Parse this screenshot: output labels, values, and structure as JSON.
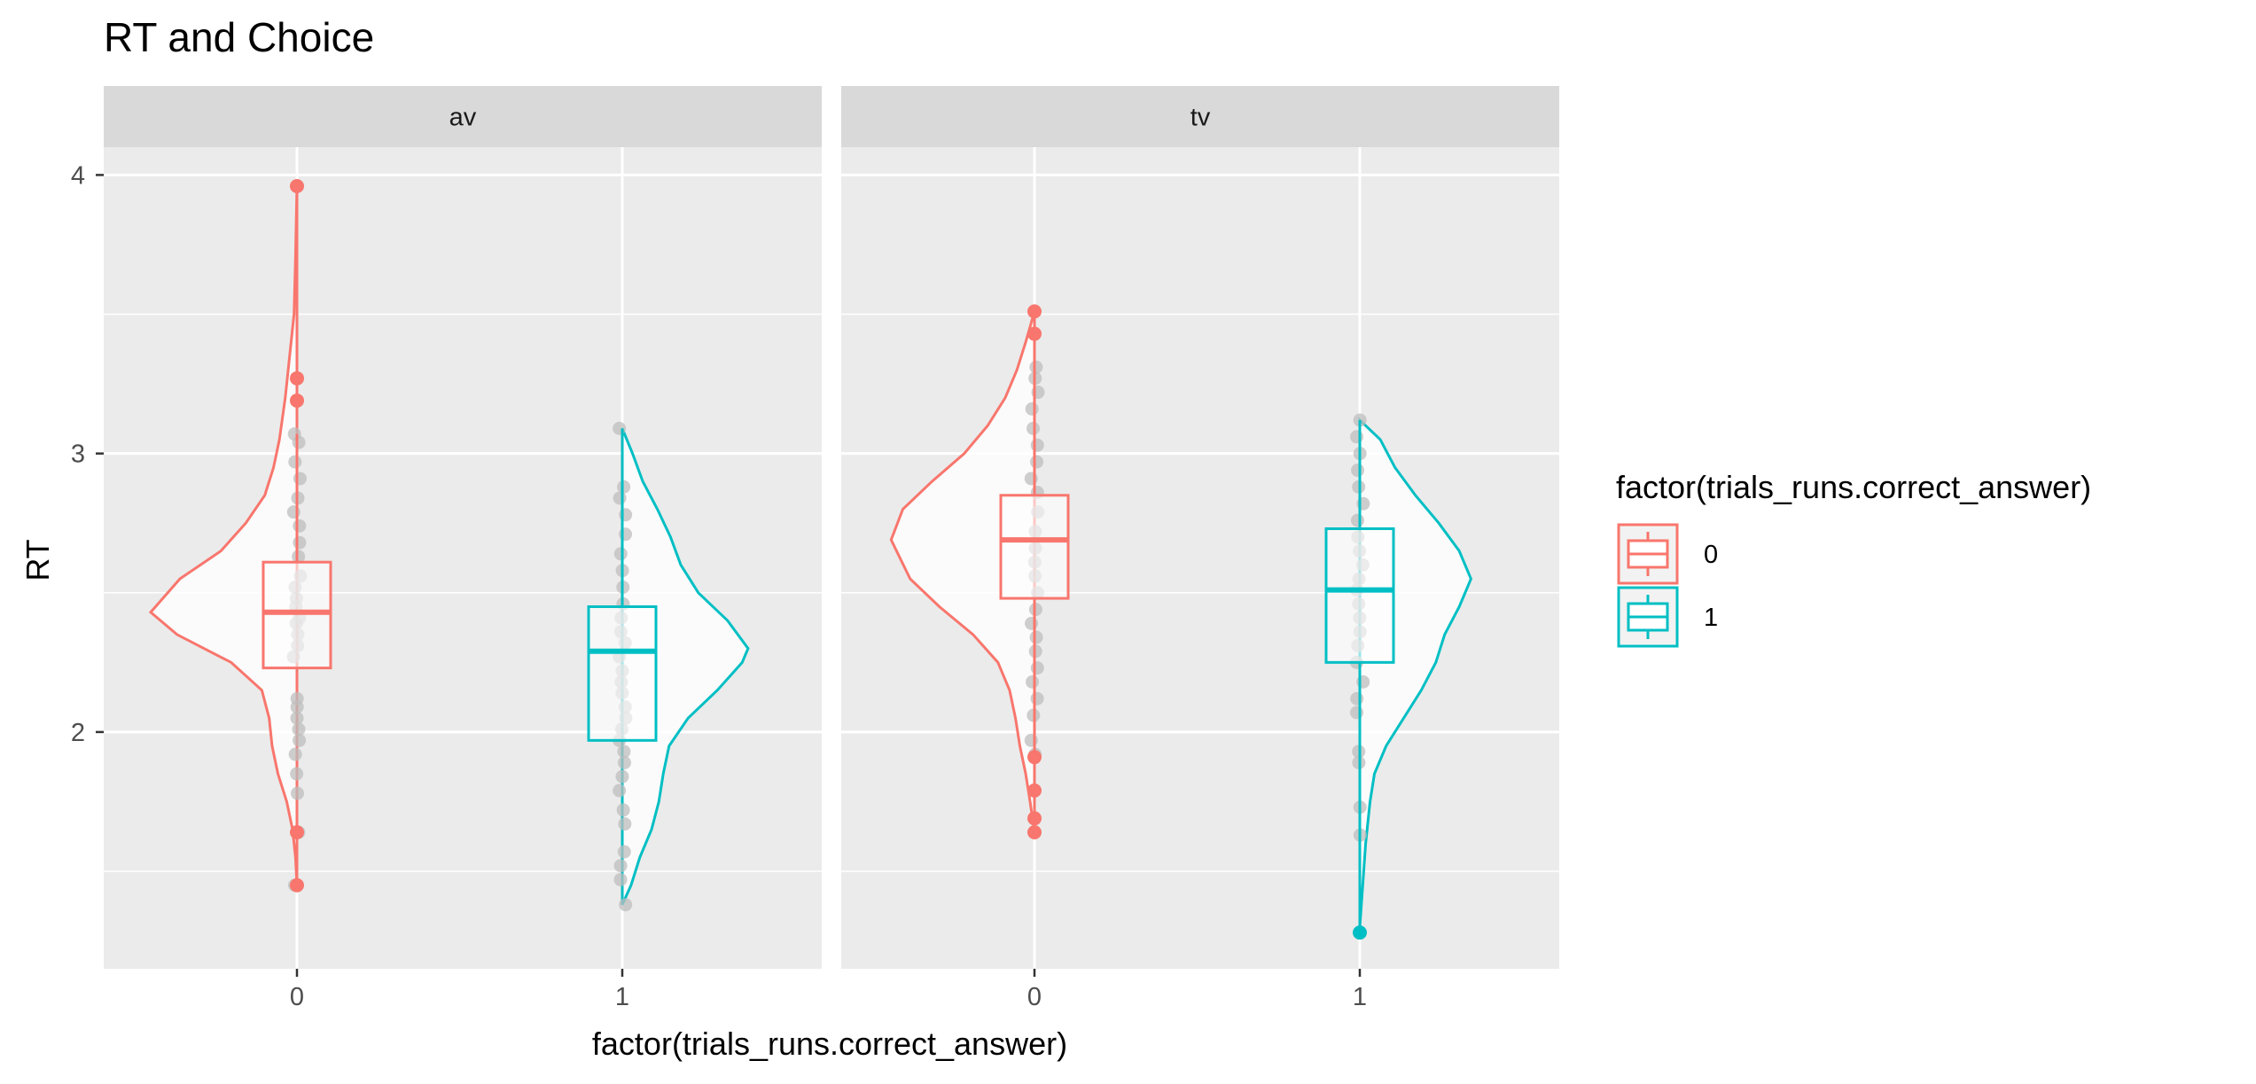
{
  "chart_data": {
    "type": "raincloud",
    "title": "RT and Choice",
    "xlabel": "factor(trials_runs.correct_answer)",
    "ylabel": "RT",
    "ylim": [
      1.15,
      4.1
    ],
    "y_ticks": [
      2,
      3,
      4
    ],
    "y_minor_ticks": [
      1.5,
      2.5,
      3.5
    ],
    "x_categories": [
      "0",
      "1"
    ],
    "grid": true,
    "legend": {
      "title": "factor(trials_runs.correct_answer)",
      "position": "right",
      "entries": [
        {
          "label": "0",
          "color": "#F8766D"
        },
        {
          "label": "1",
          "color": "#00BFC4"
        }
      ]
    },
    "colors": {
      "0": "#F8766D",
      "1": "#00BFC4",
      "panel_bg": "#EBEBEB",
      "strip_bg": "#D9D9D9",
      "points": "#BDBDBD"
    },
    "facets": [
      {
        "label": "av",
        "groups": [
          {
            "category": "0",
            "box": {
              "lower": 2.23,
              "q1": 2.23,
              "median": 2.43,
              "q3": 2.61,
              "upper": 3.07
            },
            "points": [
              1.45,
              1.64,
              1.78,
              1.85,
              1.92,
              1.97,
              2.01,
              2.05,
              2.09,
              2.12,
              2.27,
              2.31,
              2.35,
              2.39,
              2.41,
              2.45,
              2.48,
              2.52,
              2.56,
              2.63,
              2.68,
              2.74,
              2.79,
              2.84,
              2.91,
              2.97,
              3.04,
              3.07
            ],
            "outliers": [
              1.45,
              1.64,
              3.19,
              3.27,
              3.96
            ],
            "density": [
              [
                1.45,
                0.0
              ],
              [
                1.55,
                0.01
              ],
              [
                1.65,
                0.03
              ],
              [
                1.75,
                0.07
              ],
              [
                1.85,
                0.13
              ],
              [
                1.95,
                0.17
              ],
              [
                2.05,
                0.19
              ],
              [
                2.15,
                0.24
              ],
              [
                2.25,
                0.45
              ],
              [
                2.35,
                0.82
              ],
              [
                2.43,
                1.0
              ],
              [
                2.55,
                0.8
              ],
              [
                2.65,
                0.52
              ],
              [
                2.75,
                0.35
              ],
              [
                2.85,
                0.22
              ],
              [
                2.95,
                0.16
              ],
              [
                3.05,
                0.12
              ],
              [
                3.2,
                0.08
              ],
              [
                3.35,
                0.05
              ],
              [
                3.5,
                0.02
              ],
              [
                3.7,
                0.01
              ],
              [
                3.96,
                0.0
              ]
            ]
          },
          {
            "category": "1",
            "box": {
              "lower": 1.97,
              "q1": 1.97,
              "median": 2.29,
              "q3": 2.45,
              "upper": 3.09
            },
            "points": [
              1.38,
              1.47,
              1.52,
              1.57,
              1.67,
              1.72,
              1.79,
              1.84,
              1.89,
              1.93,
              1.97,
              2.01,
              2.05,
              2.09,
              2.14,
              2.18,
              2.22,
              2.27,
              2.32,
              2.36,
              2.41,
              2.46,
              2.52,
              2.58,
              2.64,
              2.71,
              2.78,
              2.84,
              2.88,
              3.09
            ],
            "outliers": [],
            "density": [
              [
                1.38,
                0.0
              ],
              [
                1.45,
                0.06
              ],
              [
                1.55,
                0.12
              ],
              [
                1.65,
                0.2
              ],
              [
                1.75,
                0.25
              ],
              [
                1.85,
                0.28
              ],
              [
                1.95,
                0.32
              ],
              [
                2.05,
                0.45
              ],
              [
                2.15,
                0.65
              ],
              [
                2.25,
                0.82
              ],
              [
                2.3,
                0.86
              ],
              [
                2.4,
                0.72
              ],
              [
                2.5,
                0.52
              ],
              [
                2.6,
                0.4
              ],
              [
                2.7,
                0.33
              ],
              [
                2.8,
                0.24
              ],
              [
                2.9,
                0.14
              ],
              [
                3.0,
                0.07
              ],
              [
                3.09,
                0.0
              ]
            ]
          }
        ]
      },
      {
        "label": "tv",
        "groups": [
          {
            "category": "0",
            "box": {
              "lower": 1.64,
              "q1": 2.48,
              "median": 2.69,
              "q3": 2.85,
              "upper": 3.51
            },
            "points": [
              1.92,
              1.97,
              2.06,
              2.12,
              2.18,
              2.23,
              2.29,
              2.34,
              2.39,
              2.44,
              2.5,
              2.56,
              2.61,
              2.66,
              2.72,
              2.79,
              2.86,
              2.91,
              2.97,
              3.03,
              3.09,
              3.16,
              3.22,
              3.27,
              3.31
            ],
            "outliers": [
              1.64,
              1.69,
              1.79,
              1.91,
              3.43,
              3.51
            ],
            "density": [
              [
                1.64,
                0.0
              ],
              [
                1.75,
                0.03
              ],
              [
                1.85,
                0.06
              ],
              [
                1.95,
                0.1
              ],
              [
                2.05,
                0.13
              ],
              [
                2.15,
                0.17
              ],
              [
                2.25,
                0.25
              ],
              [
                2.35,
                0.42
              ],
              [
                2.45,
                0.65
              ],
              [
                2.55,
                0.85
              ],
              [
                2.69,
                0.98
              ],
              [
                2.8,
                0.9
              ],
              [
                2.9,
                0.7
              ],
              [
                3.0,
                0.48
              ],
              [
                3.1,
                0.32
              ],
              [
                3.2,
                0.2
              ],
              [
                3.3,
                0.12
              ],
              [
                3.4,
                0.06
              ],
              [
                3.51,
                0.0
              ]
            ]
          },
          {
            "category": "1",
            "box": {
              "lower": 1.3,
              "q1": 2.25,
              "median": 2.51,
              "q3": 2.73,
              "upper": 3.12
            },
            "points": [
              1.63,
              1.73,
              1.89,
              1.93,
              2.07,
              2.12,
              2.18,
              2.25,
              2.31,
              2.36,
              2.41,
              2.46,
              2.51,
              2.55,
              2.6,
              2.65,
              2.7,
              2.76,
              2.82,
              2.88,
              2.94,
              3.0,
              3.06,
              3.12
            ],
            "outliers": [
              1.28
            ],
            "density": [
              [
                1.3,
                0.0
              ],
              [
                1.45,
                0.02
              ],
              [
                1.6,
                0.04
              ],
              [
                1.75,
                0.07
              ],
              [
                1.85,
                0.1
              ],
              [
                1.95,
                0.18
              ],
              [
                2.05,
                0.3
              ],
              [
                2.15,
                0.42
              ],
              [
                2.25,
                0.52
              ],
              [
                2.35,
                0.58
              ],
              [
                2.45,
                0.68
              ],
              [
                2.55,
                0.76
              ],
              [
                2.65,
                0.68
              ],
              [
                2.75,
                0.54
              ],
              [
                2.85,
                0.38
              ],
              [
                2.95,
                0.24
              ],
              [
                3.05,
                0.14
              ],
              [
                3.12,
                0.0
              ]
            ]
          }
        ]
      }
    ]
  }
}
